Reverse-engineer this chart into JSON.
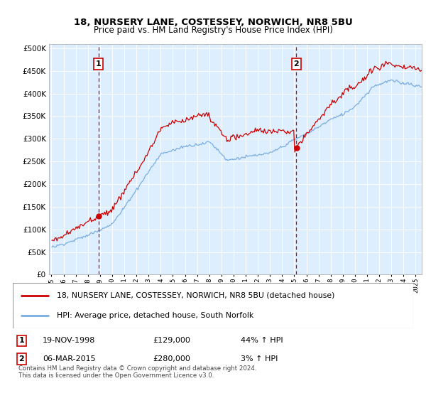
{
  "title": "18, NURSERY LANE, COSTESSEY, NORWICH, NR8 5BU",
  "subtitle": "Price paid vs. HM Land Registry's House Price Index (HPI)",
  "bg_color": "#ddeeff",
  "sale1_date_num": 1998.88,
  "sale1_price": 129000,
  "sale1_label": "1",
  "sale1_hpi_str": "44% ↑ HPI",
  "sale1_date_str": "19-NOV-1998",
  "sale2_date_num": 2015.17,
  "sale2_price": 280000,
  "sale2_label": "2",
  "sale2_hpi_str": "3% ↑ HPI",
  "sale2_date_str": "06-MAR-2015",
  "red_color": "#cc0000",
  "blue_color": "#7aade0",
  "ylim_max": 510000,
  "xlim_min": 1994.8,
  "xlim_max": 2025.5,
  "footer": "Contains HM Land Registry data © Crown copyright and database right 2024.\nThis data is licensed under the Open Government Licence v3.0.",
  "legend_line1": "18, NURSERY LANE, COSTESSEY, NORWICH, NR8 5BU (detached house)",
  "legend_line2": "HPI: Average price, detached house, South Norfolk"
}
